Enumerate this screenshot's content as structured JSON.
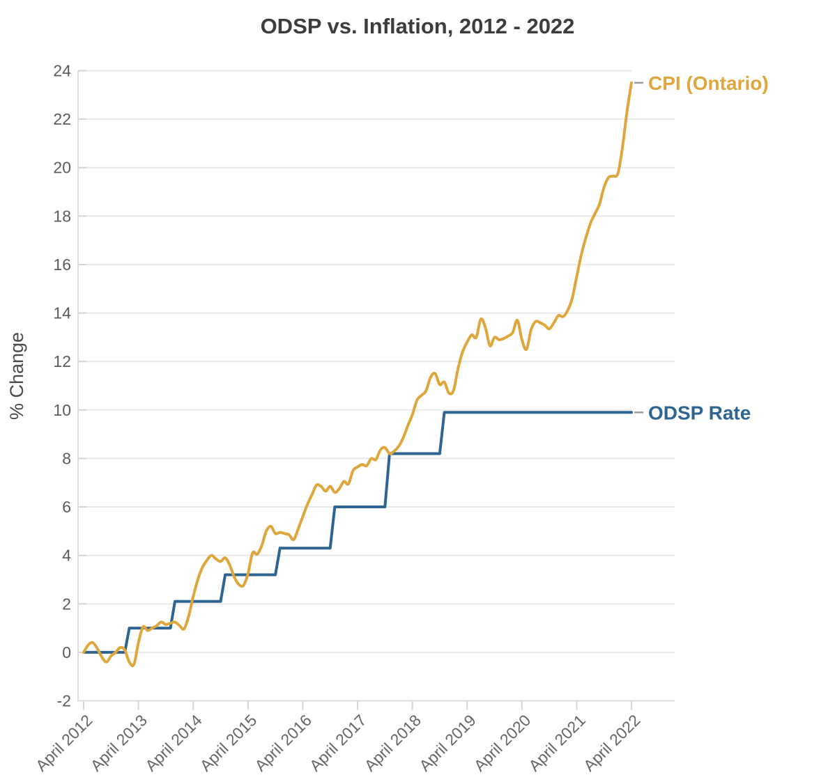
{
  "chart_data": {
    "type": "line",
    "title": "ODSP vs. Inflation, 2012 - 2022",
    "xlabel": "",
    "ylabel": "% Change",
    "ylim": [
      -2,
      24
    ],
    "y_ticks": [
      -2,
      0,
      2,
      4,
      6,
      8,
      10,
      12,
      14,
      16,
      18,
      20,
      22,
      24
    ],
    "x_tick_labels": [
      "April 2012",
      "April 2013",
      "April 2014",
      "April 2015",
      "April 2016",
      "April 2017",
      "April 2018",
      "April 2019",
      "April 2020",
      "April 2021",
      "April 2022"
    ],
    "x_unit": "months since April 2012 (0-120, monthly values)",
    "grid": "horizontal",
    "legend_position": "labels at right end of each line",
    "series": [
      {
        "name": "CPI (Ontario)",
        "color": "#DFA63C",
        "line_style": "smooth",
        "values": [
          0.0,
          0.3,
          0.4,
          0.15,
          -0.2,
          -0.4,
          -0.15,
          0.0,
          0.2,
          0.1,
          -0.4,
          -0.5,
          0.4,
          1.05,
          0.9,
          1.0,
          1.1,
          1.25,
          1.15,
          1.2,
          1.25,
          1.1,
          0.97,
          1.5,
          2.3,
          3.0,
          3.5,
          3.8,
          4.0,
          3.85,
          3.75,
          3.9,
          3.6,
          3.1,
          2.8,
          2.76,
          3.25,
          4.1,
          4.05,
          4.4,
          5.0,
          5.2,
          4.9,
          4.95,
          4.9,
          4.85,
          4.65,
          5.1,
          5.6,
          6.1,
          6.5,
          6.9,
          6.85,
          6.65,
          6.85,
          6.6,
          6.75,
          7.05,
          6.95,
          7.5,
          7.65,
          7.75,
          7.7,
          8.0,
          7.95,
          8.35,
          8.45,
          8.2,
          8.3,
          8.5,
          8.85,
          9.35,
          9.8,
          10.4,
          10.6,
          10.8,
          11.35,
          11.5,
          11.05,
          11.15,
          10.7,
          10.8,
          11.7,
          12.4,
          12.8,
          13.1,
          13.0,
          13.75,
          13.4,
          12.65,
          13.0,
          12.9,
          12.95,
          13.05,
          13.2,
          13.7,
          12.9,
          12.5,
          13.3,
          13.65,
          13.6,
          13.5,
          13.35,
          13.6,
          13.9,
          13.85,
          14.1,
          14.6,
          15.5,
          16.4,
          17.1,
          17.7,
          18.1,
          18.5,
          19.2,
          19.6,
          19.65,
          19.75,
          20.8,
          22.3,
          23.5
        ]
      },
      {
        "name": "ODSP Rate",
        "color": "#2E6492",
        "line_style": "step",
        "values": [
          0.0,
          0.0,
          0.0,
          0.0,
          0.0,
          0.0,
          0.0,
          0.0,
          0.0,
          0.0,
          1.0,
          1.0,
          1.0,
          1.0,
          1.0,
          1.0,
          1.0,
          1.0,
          1.0,
          1.0,
          2.1,
          2.1,
          2.1,
          2.1,
          2.1,
          2.1,
          2.1,
          2.1,
          2.1,
          2.1,
          2.1,
          3.2,
          3.2,
          3.2,
          3.2,
          3.2,
          3.2,
          3.2,
          3.2,
          3.2,
          3.2,
          3.2,
          3.2,
          4.3,
          4.3,
          4.3,
          4.3,
          4.3,
          4.3,
          4.3,
          4.3,
          4.3,
          4.3,
          4.3,
          4.3,
          6.0,
          6.0,
          6.0,
          6.0,
          6.0,
          6.0,
          6.0,
          6.0,
          6.0,
          6.0,
          6.0,
          6.0,
          8.2,
          8.2,
          8.2,
          8.2,
          8.2,
          8.2,
          8.2,
          8.2,
          8.2,
          8.2,
          8.2,
          8.2,
          9.9,
          9.9,
          9.9,
          9.9,
          9.9,
          9.9,
          9.9,
          9.9,
          9.9,
          9.9,
          9.9,
          9.9,
          9.9,
          9.9,
          9.9,
          9.9,
          9.9,
          9.9,
          9.9,
          9.9,
          9.9,
          9.9,
          9.9,
          9.9,
          9.9,
          9.9,
          9.9,
          9.9,
          9.9,
          9.9,
          9.9,
          9.9,
          9.9,
          9.9,
          9.9,
          9.9,
          9.9,
          9.9,
          9.9,
          9.9,
          9.9,
          9.9
        ]
      }
    ]
  }
}
